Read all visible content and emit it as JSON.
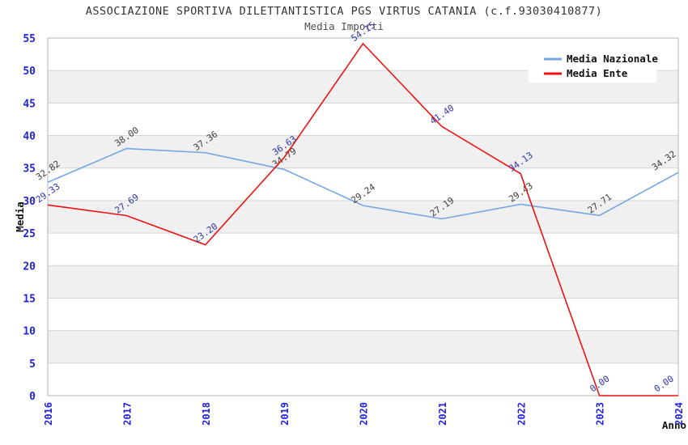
{
  "title": "ASSOCIAZIONE SPORTIVA DILETTANTISTICA PGS VIRTUS CATANIA (c.f.93030410877)",
  "subtitle": "Media Importi",
  "chart_data": {
    "type": "line",
    "x": [
      "2016",
      "2017",
      "2018",
      "2019",
      "2020",
      "2021",
      "2022",
      "2023",
      "2024"
    ],
    "xlabel": "Anno",
    "ylabel": "Media",
    "ylim": [
      0,
      55
    ],
    "ytick_step": 5,
    "grid": "horizontal-gridlines-with-alternating-bands",
    "legend_position": "top-right",
    "series": [
      {
        "name": "Media Nazionale",
        "color": "#74a7e0",
        "label_color": "#3d3d3d",
        "values": [
          32.82,
          38.0,
          37.36,
          34.79,
          29.24,
          27.19,
          29.43,
          27.71,
          34.32
        ]
      },
      {
        "name": "Media Ente",
        "color": "#ee1111",
        "label_color": "#3333aa",
        "values": [
          29.33,
          27.69,
          23.2,
          36.63,
          54.15,
          41.4,
          34.13,
          0.0,
          0.0
        ]
      }
    ],
    "colors": {
      "band": "#f0f0f0",
      "gridline": "#d6d6d6",
      "border": "#b3b3b3",
      "tick_label": "#2222dd",
      "background": "#ffffff",
      "legend_background": "#ffffff"
    }
  }
}
